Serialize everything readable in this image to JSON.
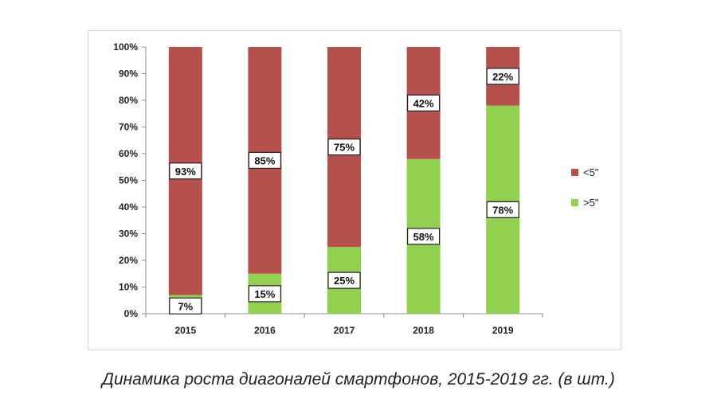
{
  "chart_data": {
    "type": "bar",
    "stacked": true,
    "categories": [
      "2015",
      "2016",
      "2017",
      "2018",
      "2019"
    ],
    "series": [
      {
        "name": ">5\"",
        "values": [
          7,
          15,
          25,
          58,
          78
        ],
        "color": "#92d050"
      },
      {
        "name": "<5\"",
        "values": [
          93,
          85,
          75,
          42,
          22
        ],
        "color": "#b5504d"
      }
    ],
    "ylim": [
      0,
      100
    ],
    "y_ticks": [
      "0%",
      "10%",
      "20%",
      "30%",
      "40%",
      "50%",
      "60%",
      "70%",
      "80%",
      "90%",
      "100%"
    ],
    "data_labels": {
      "lower": [
        "7%",
        "15%",
        "25%",
        "58%",
        "78%"
      ],
      "upper": [
        "93%",
        "85%",
        "75%",
        "42%",
        "22%"
      ]
    },
    "legend": {
      "placement": "right",
      "items": [
        {
          "label": "<5\"",
          "color": "#b5504d"
        },
        {
          "label": ">5\"",
          "color": "#92d050"
        }
      ]
    },
    "grid": false,
    "xlabel": "",
    "ylabel": ""
  },
  "caption": "Динамика роста диагоналей смартфонов, 2015-2019 гг. (в шт.)"
}
